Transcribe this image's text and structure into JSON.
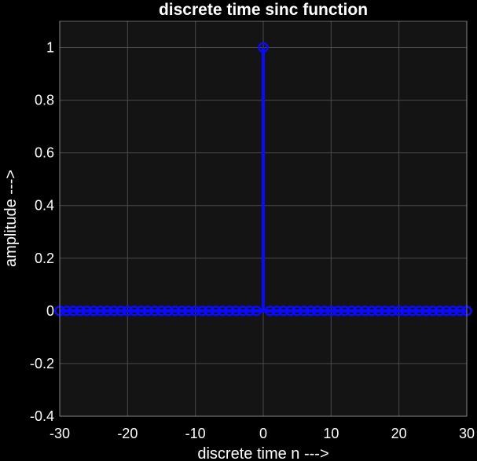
{
  "figure": {
    "background": "#000000",
    "axes_background": "#141414",
    "grid_color": "#4a4a4a",
    "text_color": "#ffffff"
  },
  "chart_data": {
    "type": "scatter",
    "style": "stem",
    "title": "discrete time sinc function",
    "xlabel": "discrete time n --->",
    "ylabel": "amplitude --->",
    "xlim": [
      -30,
      30
    ],
    "ylim": [
      -0.4,
      1.1
    ],
    "xticks": [
      -30,
      -20,
      -10,
      0,
      10,
      20,
      30
    ],
    "yticks": [
      -0.4,
      -0.2,
      0,
      0.2,
      0.4,
      0.6,
      0.8,
      1
    ],
    "xtick_labels": [
      "-30",
      "-20",
      "-10",
      "0",
      "10",
      "20",
      "30"
    ],
    "ytick_labels": [
      "-0.4",
      "-0.2",
      "0",
      "0.2",
      "0.4",
      "0.6",
      "0.8",
      "1"
    ],
    "grid": true,
    "legend": null,
    "series": [
      {
        "color": "#0a0aff",
        "marker": "open-circle",
        "x": [
          -30,
          -29,
          -28,
          -27,
          -26,
          -25,
          -24,
          -23,
          -22,
          -21,
          -20,
          -19,
          -18,
          -17,
          -16,
          -15,
          -14,
          -13,
          -12,
          -11,
          -10,
          -9,
          -8,
          -7,
          -6,
          -5,
          -4,
          -3,
          -2,
          -1,
          0,
          1,
          2,
          3,
          4,
          5,
          6,
          7,
          8,
          9,
          10,
          11,
          12,
          13,
          14,
          15,
          16,
          17,
          18,
          19,
          20,
          21,
          22,
          23,
          24,
          25,
          26,
          27,
          28,
          29,
          30
        ],
        "y": [
          0,
          0,
          0,
          0,
          0,
          0,
          0,
          0,
          0,
          0,
          0,
          0,
          0,
          0,
          0,
          0,
          0,
          0,
          0,
          0,
          0,
          0,
          0,
          0,
          0,
          0,
          0,
          0,
          0,
          0,
          1,
          0,
          0,
          0,
          0,
          0,
          0,
          0,
          0,
          0,
          0,
          0,
          0,
          0,
          0,
          0,
          0,
          0,
          0,
          0,
          0,
          0,
          0,
          0,
          0,
          0,
          0,
          0,
          0,
          0,
          0
        ]
      }
    ]
  }
}
